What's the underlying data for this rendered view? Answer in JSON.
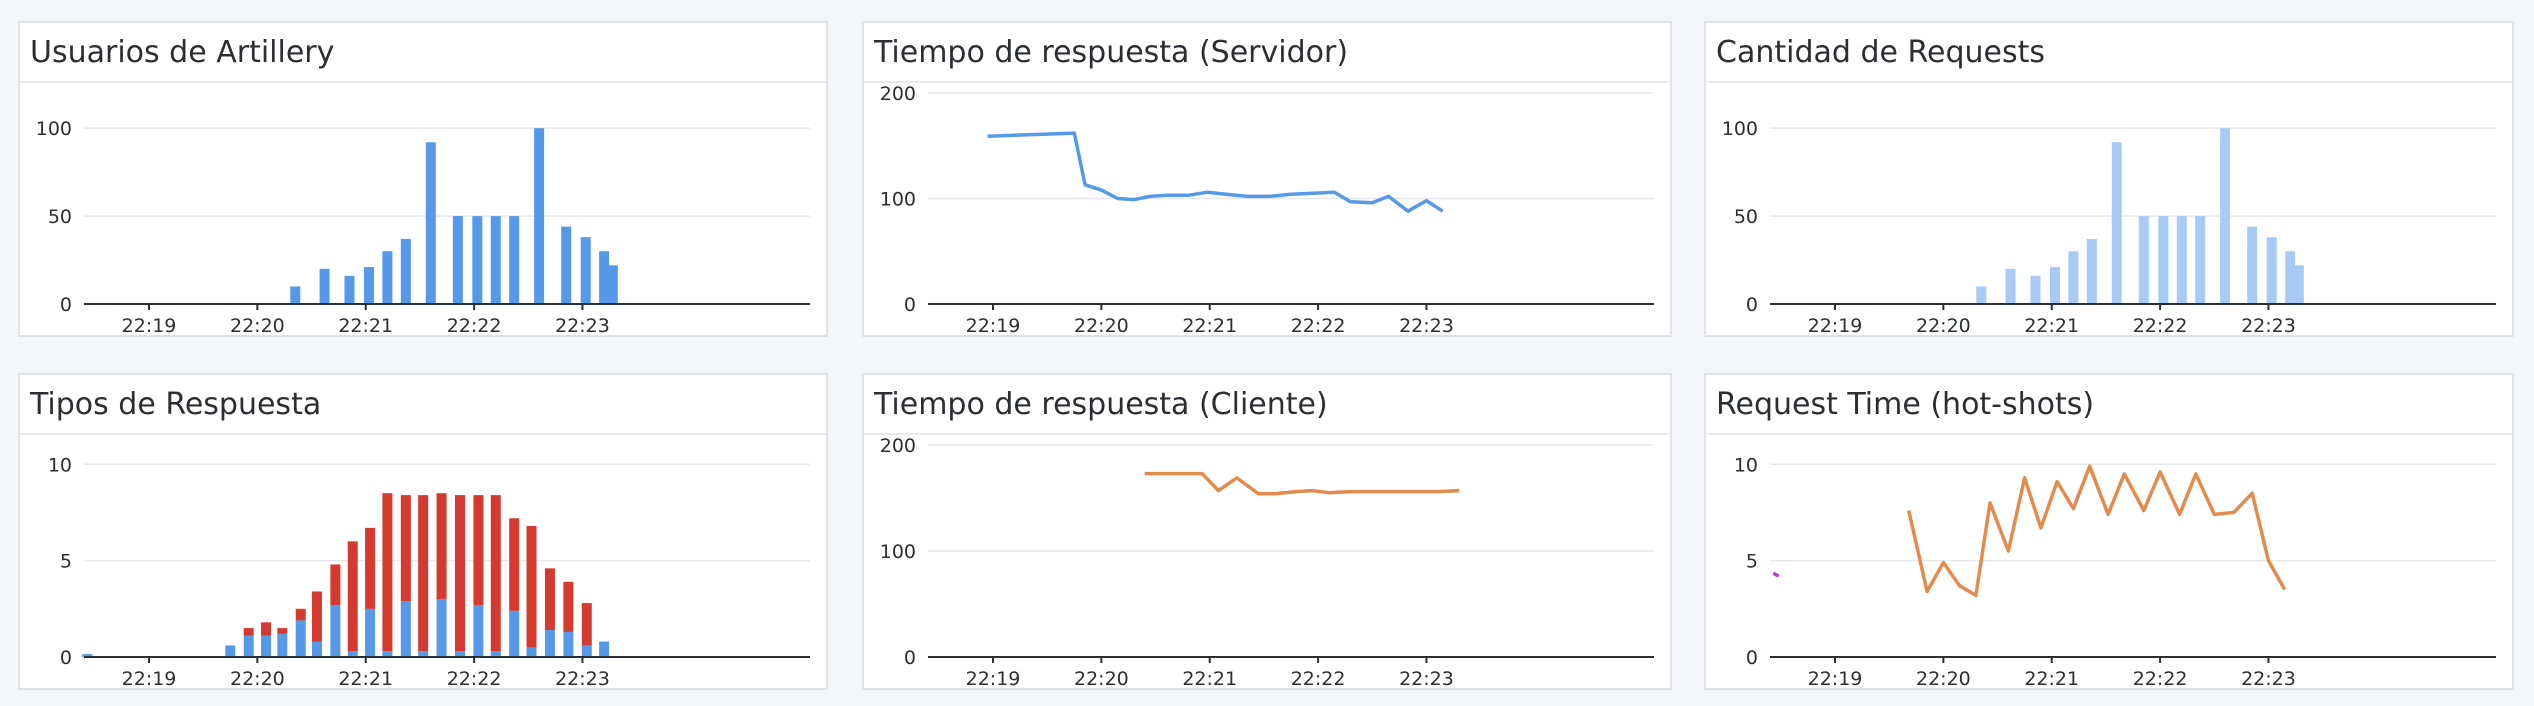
{
  "colors": {
    "blue": "#5599e8",
    "light_blue": "#a7cbf5",
    "red": "#d43a2f",
    "orange": "#e38b4d",
    "magenta": "#b445c9"
  },
  "panels": [
    {
      "id": "p1",
      "title": "Usuarios de Artillery"
    },
    {
      "id": "p2",
      "title": "Tiempo de respuesta (Servidor)"
    },
    {
      "id": "p3",
      "title": "Cantidad de Requests"
    },
    {
      "id": "p4",
      "title": "Tipos de Respuesta"
    },
    {
      "id": "p5",
      "title": "Tiempo de respuesta (Cliente)"
    },
    {
      "id": "p6",
      "title": "Request Time (hot-shots)"
    }
  ],
  "chart_data": [
    {
      "type": "bar",
      "title": "Usuarios de Artillery",
      "xlim": [
        18.4,
        25.1
      ],
      "xticks": [
        19,
        20,
        21,
        22,
        23
      ],
      "xticklabels": [
        "22:19",
        "22:20",
        "22:21",
        "22:22",
        "22:23"
      ],
      "ylim": [
        0,
        120
      ],
      "yticks": [
        0,
        50,
        100
      ],
      "color": "blue",
      "x": [
        20.35,
        20.62,
        20.85,
        21.03,
        21.2,
        21.37,
        21.6,
        21.85,
        22.03,
        22.2,
        22.37,
        22.6,
        22.85,
        23.03,
        23.2,
        23.28
      ],
      "values": [
        10,
        20,
        16,
        21,
        30,
        37,
        92,
        50,
        50,
        50,
        50,
        100,
        44,
        38,
        30,
        22
      ]
    },
    {
      "type": "line",
      "title": "Tiempo de respuesta (Servidor)",
      "xlim": [
        18.4,
        25.1
      ],
      "xticks": [
        19,
        20,
        21,
        22,
        23
      ],
      "xticklabels": [
        "22:19",
        "22:20",
        "22:21",
        "22:22",
        "22:23"
      ],
      "ylim": [
        0,
        200
      ],
      "yticks": [
        0,
        100,
        200
      ],
      "series": [
        {
          "color": "blue",
          "x": [
            18.95,
            19.2,
            19.5,
            19.75,
            19.85,
            20.0,
            20.15,
            20.3,
            20.45,
            20.6,
            20.8,
            20.98,
            21.15,
            21.35,
            21.55,
            21.75,
            21.95,
            22.15,
            22.3,
            22.5,
            22.65,
            22.83,
            23.0,
            23.15
          ],
          "y": [
            159,
            160,
            161,
            162,
            113,
            108,
            100,
            99,
            102,
            103,
            103,
            106,
            104,
            102,
            102,
            104,
            105,
            106,
            97,
            96,
            102,
            88,
            98,
            88
          ]
        }
      ]
    },
    {
      "type": "bar",
      "title": "Cantidad de Requests",
      "xlim": [
        18.4,
        25.1
      ],
      "xticks": [
        19,
        20,
        21,
        22,
        23
      ],
      "xticklabels": [
        "22:19",
        "22:20",
        "22:21",
        "22:22",
        "22:23"
      ],
      "ylim": [
        0,
        120
      ],
      "yticks": [
        0,
        50,
        100
      ],
      "color": "light_blue",
      "x": [
        20.35,
        20.62,
        20.85,
        21.03,
        21.2,
        21.37,
        21.6,
        21.85,
        22.03,
        22.2,
        22.37,
        22.6,
        22.85,
        23.03,
        23.2,
        23.28
      ],
      "values": [
        10,
        20,
        16,
        21,
        30,
        37,
        92,
        50,
        50,
        50,
        50,
        100,
        44,
        38,
        30,
        22
      ]
    },
    {
      "type": "bar",
      "stacked": true,
      "title": "Tipos de Respuesta",
      "xlim": [
        18.4,
        25.1
      ],
      "xticks": [
        19,
        20,
        21,
        22,
        23
      ],
      "xticklabels": [
        "22:19",
        "22:20",
        "22:21",
        "22:22",
        "22:23"
      ],
      "ylim": [
        0,
        11
      ],
      "yticks": [
        0,
        5,
        10
      ],
      "x": [
        18.43,
        19.75,
        19.92,
        20.08,
        20.23,
        20.4,
        20.55,
        20.72,
        20.88,
        21.04,
        21.2,
        21.37,
        21.53,
        21.7,
        21.87,
        22.04,
        22.2,
        22.37,
        22.53,
        22.7,
        22.87,
        23.04,
        23.2
      ],
      "series": [
        {
          "color": "blue",
          "values": [
            0.15,
            0.6,
            1.1,
            1.1,
            1.2,
            1.9,
            0.8,
            2.7,
            0.3,
            2.5,
            0.3,
            2.9,
            0.3,
            3.0,
            0.3,
            2.7,
            0.3,
            2.4,
            0.5,
            1.4,
            1.3,
            0.6,
            0.8
          ]
        },
        {
          "color": "red",
          "values": [
            0,
            0,
            0.4,
            0.7,
            0.3,
            0.6,
            2.6,
            2.1,
            5.7,
            4.2,
            8.2,
            5.5,
            8.1,
            5.5,
            8.1,
            5.7,
            8.1,
            4.8,
            6.3,
            3.2,
            2.6,
            2.2,
            0
          ]
        }
      ]
    },
    {
      "type": "line",
      "title": "Tiempo de respuesta (Cliente)",
      "xlim": [
        18.4,
        25.1
      ],
      "xticks": [
        19,
        20,
        21,
        22,
        23
      ],
      "xticklabels": [
        "22:19",
        "22:20",
        "22:21",
        "22:22",
        "22:23"
      ],
      "ylim": [
        0,
        200
      ],
      "yticks": [
        0,
        100,
        200
      ],
      "series": [
        {
          "color": "orange",
          "x": [
            20.4,
            20.6,
            20.8,
            20.93,
            21.08,
            21.25,
            21.45,
            21.6,
            21.8,
            21.95,
            22.1,
            22.3,
            22.5,
            22.7,
            22.9,
            23.1,
            23.3
          ],
          "y": [
            173,
            173,
            173,
            173,
            157,
            169,
            154,
            154,
            156,
            157,
            155,
            156,
            156,
            156,
            156,
            156,
            157
          ]
        }
      ]
    },
    {
      "type": "line",
      "title": "Request Time (hot-shots)",
      "xlim": [
        18.4,
        25.1
      ],
      "xticks": [
        19,
        20,
        21,
        22,
        23
      ],
      "xticklabels": [
        "22:19",
        "22:20",
        "22:21",
        "22:22",
        "22:23"
      ],
      "ylim": [
        0,
        11
      ],
      "yticks": [
        0,
        5,
        10
      ],
      "series": [
        {
          "color": "magenta",
          "x": [
            18.43,
            18.48
          ],
          "y": [
            4.35,
            4.2
          ]
        },
        {
          "color": "orange",
          "x": [
            19.68,
            19.85,
            20.0,
            20.15,
            20.3,
            20.43,
            20.6,
            20.75,
            20.9,
            21.05,
            21.2,
            21.35,
            21.52,
            21.67,
            21.85,
            22.0,
            22.18,
            22.33,
            22.5,
            22.68,
            22.85,
            23.0,
            23.15
          ],
          "y": [
            7.6,
            3.4,
            4.9,
            3.7,
            3.2,
            8.0,
            5.5,
            9.3,
            6.7,
            9.1,
            7.7,
            9.9,
            7.4,
            9.5,
            7.6,
            9.6,
            7.4,
            9.5,
            7.4,
            7.5,
            8.5,
            5.0,
            3.5
          ]
        }
      ]
    }
  ]
}
